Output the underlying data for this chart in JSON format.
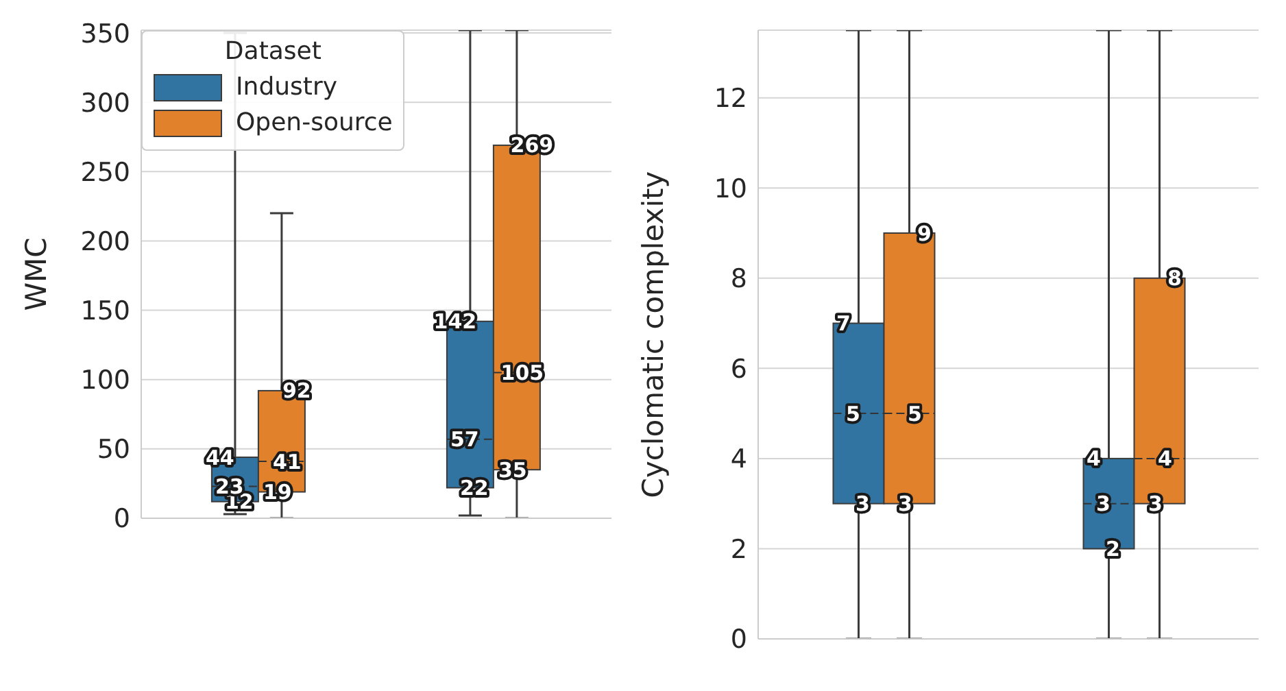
{
  "chart_data": [
    {
      "type": "box",
      "ylabel": "WMC",
      "categories": [
        null,
        null
      ],
      "ylim": [
        0,
        352
      ],
      "yticks": [
        0,
        50,
        100,
        150,
        200,
        250,
        300,
        350
      ],
      "grid": "y",
      "tick_labels": "y",
      "legend": "top left",
      "legend_title": "Dataset",
      "series": [
        {
          "name": "Industry",
          "color": "#3274a1",
          "boxes": [
            {
              "low": 3,
              "q1": 12,
              "median": 23,
              "q3": 44,
              "high": 350
            },
            {
              "low": 2,
              "q1": 22,
              "median": 57,
              "q3": 142,
              "high": 352
            }
          ]
        },
        {
          "name": "Open-source",
          "color": "#e1812c",
          "boxes": [
            {
              "low": 0,
              "q1": 19,
              "median": 41,
              "q3": 92,
              "high": 220
            },
            {
              "low": 0,
              "q1": 35,
              "median": 105,
              "q3": 269,
              "high": 352
            }
          ]
        }
      ],
      "annotations": [
        {
          "text": "12",
          "y": 12
        },
        {
          "text": "23",
          "y": 23
        },
        {
          "text": "44",
          "y": 44
        },
        {
          "text": "22",
          "y": 22
        },
        {
          "text": "57",
          "y": 57
        },
        {
          "text": "142",
          "y": 142
        },
        {
          "text": "19",
          "y": 19
        },
        {
          "text": "41",
          "y": 41
        },
        {
          "text": "92",
          "y": 92
        },
        {
          "text": "35",
          "y": 35
        },
        {
          "text": "105",
          "y": 105
        },
        {
          "text": "269",
          "y": 269
        }
      ]
    },
    {
      "type": "box",
      "ylabel": "Cyclomatic complexity",
      "categories": [
        null,
        null
      ],
      "ylim": [
        0,
        13.5
      ],
      "yticks": [
        0,
        2,
        4,
        6,
        8,
        10,
        12
      ],
      "grid": "y",
      "tick_labels": "y",
      "series": [
        {
          "color": "#3274a1",
          "boxes": [
            {
              "low": 0,
              "q1": 3,
              "median": 5,
              "q3": 7,
              "high": 13.5
            },
            {
              "low": 0,
              "q1": 2,
              "median": 3,
              "q3": 4,
              "high": 13.5
            }
          ]
        },
        {
          "color": "#e1812c",
          "boxes": [
            {
              "low": 0,
              "q1": 3,
              "median": 5,
              "q3": 9,
              "high": 13.5
            },
            {
              "low": 0,
              "q1": 3,
              "median": 4,
              "q3": 8,
              "high": 13.5
            }
          ]
        }
      ],
      "annotations": [
        {
          "text": "3",
          "y": 3
        },
        {
          "text": "5",
          "y": 5
        },
        {
          "text": "7",
          "y": 7
        },
        {
          "text": "2",
          "y": 2
        },
        {
          "text": "3",
          "y": 3
        },
        {
          "text": "4",
          "y": 4
        },
        {
          "text": "3",
          "y": 3
        },
        {
          "text": "5",
          "y": 5
        },
        {
          "text": "9",
          "y": 9
        },
        {
          "text": "3",
          "y": 3
        },
        {
          "text": "4",
          "y": 4
        },
        {
          "text": "8",
          "y": 8
        }
      ]
    }
  ]
}
